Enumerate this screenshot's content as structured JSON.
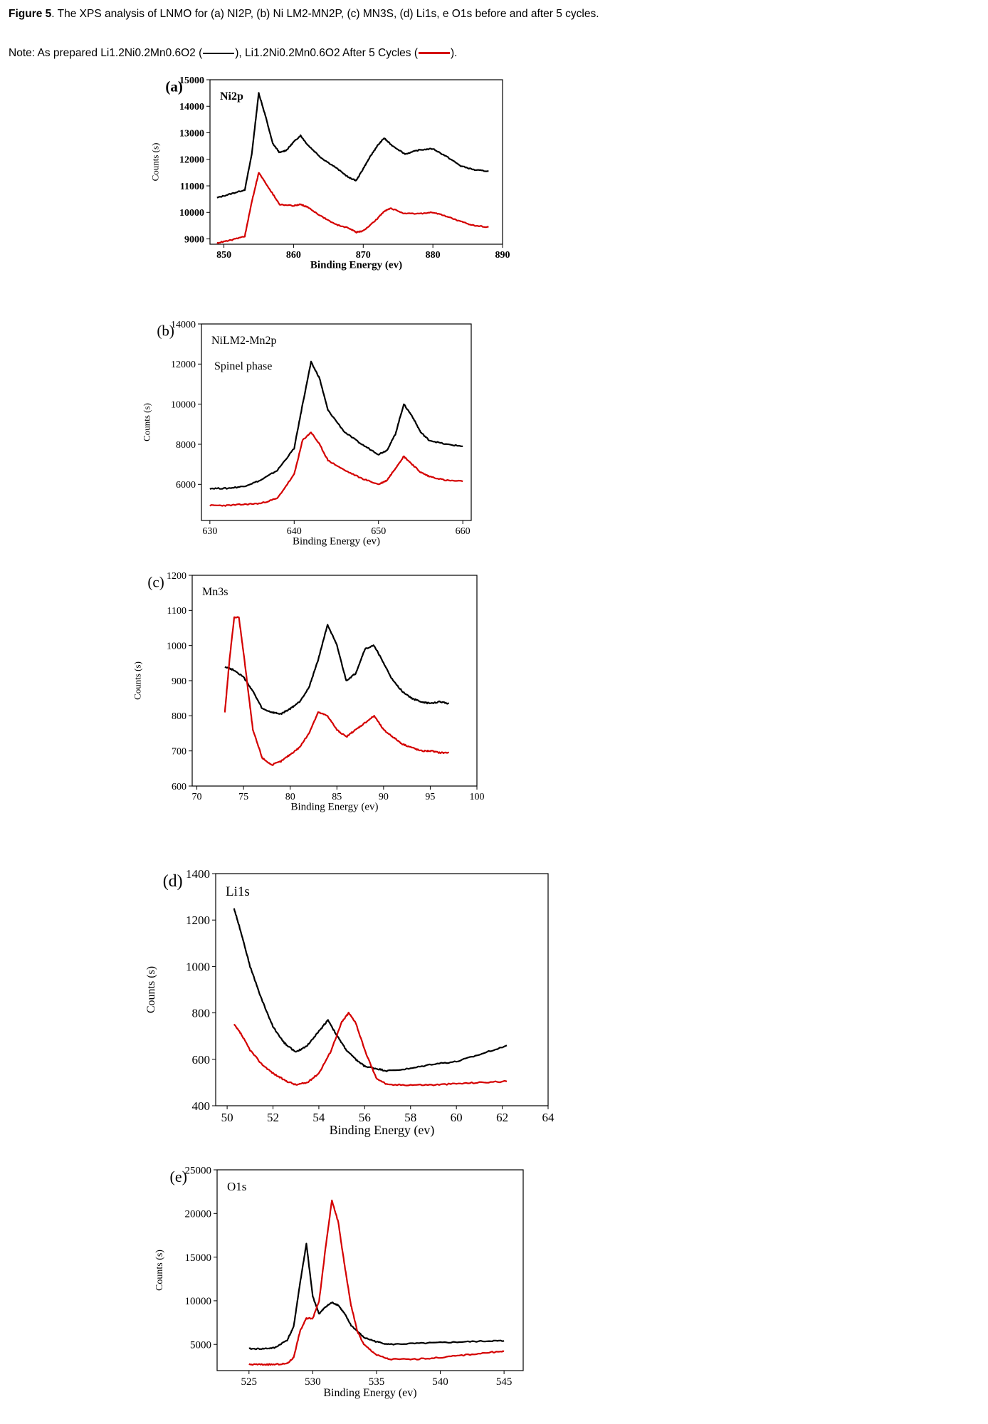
{
  "caption": {
    "label": "Figure 5",
    "text": ". The XPS analysis of LNMO for (a) NI2P, (b) Ni LM2-MN2P, (c) MN3S, (d) Li1s, e O1s before and after 5 cycles."
  },
  "note": {
    "prefix": "Note: As prepared Li1.2Ni0.2Mn0.6O2 (",
    "mid": "), Li1.2Ni0.2Mn0.6O2 After 5 Cycles (",
    "suffix": ")."
  },
  "colors": {
    "as_prepared": "#000000",
    "after_cycles": "#d40000"
  },
  "chart_data": [
    {
      "type": "line",
      "panel_label": "(a)",
      "annotation": "Ni2p",
      "xlabel": "Binding Energy (ev)",
      "ylabel": "Counts (s)",
      "xlim": [
        848,
        890
      ],
      "ylim": [
        8800,
        15000
      ],
      "xticks": [
        850,
        860,
        870,
        880,
        890
      ],
      "yticks": [
        9000,
        10000,
        11000,
        12000,
        13000,
        14000,
        15000
      ],
      "grid": false,
      "series": [
        {
          "x": [
            849,
            851,
            853,
            854,
            855,
            856,
            857,
            858,
            859,
            860,
            861,
            862,
            864,
            866,
            868,
            869,
            870,
            871,
            872,
            873,
            874,
            876,
            878,
            880,
            882,
            884,
            886,
            888
          ],
          "y": [
            10550,
            10700,
            10850,
            12200,
            14500,
            13600,
            12600,
            12250,
            12350,
            12650,
            12900,
            12550,
            12050,
            11700,
            11300,
            11200,
            11650,
            12100,
            12500,
            12800,
            12550,
            12200,
            12350,
            12400,
            12100,
            11750,
            11600,
            11550
          ]
        },
        {
          "x": [
            849,
            851,
            853,
            854,
            855,
            856,
            857,
            858,
            860,
            861,
            862,
            864,
            866,
            868,
            869,
            870,
            872,
            873,
            874,
            876,
            878,
            880,
            882,
            884,
            886,
            888
          ],
          "y": [
            8850,
            8950,
            9100,
            10400,
            11500,
            11100,
            10700,
            10300,
            10250,
            10300,
            10200,
            9850,
            9550,
            9400,
            9250,
            9300,
            9750,
            10050,
            10150,
            9950,
            9950,
            10000,
            9850,
            9650,
            9500,
            9450
          ]
        }
      ]
    },
    {
      "type": "line",
      "panel_label": "(b)",
      "annotation": "NiLM2-Mn2p",
      "annotation2": "Spinel phase",
      "xlabel": "Binding Energy (ev)",
      "ylabel": "Counts (s)",
      "xlim": [
        629,
        661
      ],
      "ylim": [
        4200,
        14000
      ],
      "xticks": [
        630,
        640,
        650,
        660
      ],
      "yticks": [
        6000,
        8000,
        10000,
        12000,
        14000
      ],
      "grid": false,
      "series": [
        {
          "x": [
            630,
            632,
            634,
            636,
            638,
            640,
            641,
            642,
            643,
            644,
            646,
            648,
            650,
            651,
            652,
            653,
            654,
            655,
            656,
            658,
            660
          ],
          "y": [
            5800,
            5800,
            5900,
            6200,
            6700,
            7800,
            10000,
            12100,
            11300,
            9700,
            8600,
            8000,
            7500,
            7700,
            8500,
            10000,
            9400,
            8600,
            8200,
            8000,
            7900
          ]
        },
        {
          "x": [
            630,
            632,
            634,
            636,
            638,
            640,
            641,
            642,
            643,
            644,
            646,
            648,
            650,
            651,
            652,
            653,
            654,
            655,
            656,
            658,
            660
          ],
          "y": [
            4950,
            4950,
            5000,
            5050,
            5300,
            6500,
            8200,
            8600,
            8000,
            7200,
            6700,
            6300,
            6000,
            6200,
            6800,
            7400,
            7000,
            6600,
            6400,
            6200,
            6150
          ]
        }
      ]
    },
    {
      "type": "line",
      "panel_label": "(c)",
      "annotation": "Mn3s",
      "xlabel": "Binding Energy (ev)",
      "ylabel": "Counts (s)",
      "xlim": [
        69.5,
        100
      ],
      "ylim": [
        600,
        1200
      ],
      "xticks": [
        70,
        75,
        80,
        85,
        90,
        95,
        100
      ],
      "yticks": [
        600,
        700,
        800,
        900,
        1000,
        1100,
        1200
      ],
      "grid": false,
      "series": [
        {
          "x": [
            73,
            74,
            75,
            76,
            77,
            78,
            79,
            80,
            81,
            82,
            83,
            84,
            85,
            86,
            87,
            88,
            89,
            90,
            91,
            92,
            93,
            94,
            95,
            96,
            97
          ],
          "y": [
            940,
            930,
            910,
            870,
            820,
            810,
            805,
            820,
            840,
            880,
            960,
            1060,
            1000,
            900,
            920,
            990,
            1000,
            950,
            900,
            870,
            850,
            840,
            835,
            840,
            835
          ]
        },
        {
          "x": [
            73,
            73.5,
            74,
            74.5,
            75,
            75.5,
            76,
            77,
            78,
            79,
            80,
            81,
            82,
            83,
            84,
            85,
            86,
            87,
            88,
            89,
            90,
            91,
            92,
            93,
            94,
            95,
            96,
            97
          ],
          "y": [
            810,
            960,
            1080,
            1080,
            980,
            870,
            760,
            680,
            660,
            670,
            690,
            710,
            750,
            810,
            800,
            760,
            740,
            760,
            780,
            800,
            760,
            740,
            720,
            710,
            700,
            700,
            695,
            695
          ]
        }
      ]
    },
    {
      "type": "line",
      "panel_label": "(d)",
      "annotation": "Li1s",
      "xlabel": "Binding Energy (ev)",
      "ylabel": "Counts (s)",
      "xlim": [
        49.5,
        64
      ],
      "ylim": [
        400,
        1400
      ],
      "xticks": [
        50,
        52,
        54,
        56,
        58,
        60,
        62,
        64
      ],
      "yticks": [
        400,
        600,
        800,
        1000,
        1200,
        1400
      ],
      "grid": false,
      "series": [
        {
          "x": [
            50.3,
            50.6,
            51,
            51.5,
            52,
            52.5,
            53,
            53.5,
            54,
            54.4,
            54.8,
            55.2,
            55.6,
            56,
            56.5,
            57,
            58,
            59,
            60,
            61,
            62.2
          ],
          "y": [
            1250,
            1150,
            1000,
            860,
            740,
            670,
            630,
            660,
            720,
            770,
            700,
            640,
            600,
            570,
            560,
            550,
            560,
            580,
            590,
            620,
            660
          ]
        },
        {
          "x": [
            50.3,
            50.6,
            51,
            51.5,
            52,
            52.5,
            53,
            53.5,
            54,
            54.5,
            55,
            55.3,
            55.6,
            56,
            56.5,
            57,
            58,
            59,
            60,
            61,
            62.2
          ],
          "y": [
            750,
            710,
            640,
            580,
            540,
            510,
            490,
            500,
            540,
            630,
            760,
            800,
            760,
            640,
            520,
            490,
            490,
            490,
            495,
            500,
            505
          ]
        }
      ]
    },
    {
      "type": "line",
      "panel_label": "(e)",
      "annotation": "O1s",
      "xlabel": "Binding Energy (ev)",
      "ylabel": "Counts (s)",
      "xlim": [
        522.5,
        546.5
      ],
      "ylim": [
        2000,
        25000
      ],
      "xticks": [
        525,
        530,
        535,
        540,
        545
      ],
      "yticks": [
        5000,
        10000,
        15000,
        20000,
        25000
      ],
      "grid": false,
      "series": [
        {
          "x": [
            525,
            526,
            527,
            528,
            528.5,
            529,
            529.5,
            530,
            530.5,
            531,
            531.5,
            532,
            532.5,
            533,
            534,
            535,
            536,
            538,
            540,
            542,
            544,
            545
          ],
          "y": [
            4500,
            4500,
            4600,
            5500,
            7000,
            12000,
            16500,
            10500,
            8500,
            9300,
            9800,
            9500,
            8500,
            7200,
            5800,
            5300,
            5000,
            5100,
            5200,
            5300,
            5400,
            5400
          ]
        },
        {
          "x": [
            525,
            526,
            527,
            528,
            528.5,
            529,
            529.5,
            530,
            530.5,
            531,
            531.5,
            532,
            532.5,
            533,
            533.5,
            534,
            535,
            536,
            538,
            540,
            542,
            544,
            545
          ],
          "y": [
            2700,
            2700,
            2700,
            2800,
            3500,
            6500,
            8000,
            8000,
            10000,
            16000,
            21500,
            19000,
            14000,
            9500,
            6500,
            5000,
            3800,
            3300,
            3300,
            3500,
            3800,
            4100,
            4200
          ]
        }
      ]
    }
  ]
}
